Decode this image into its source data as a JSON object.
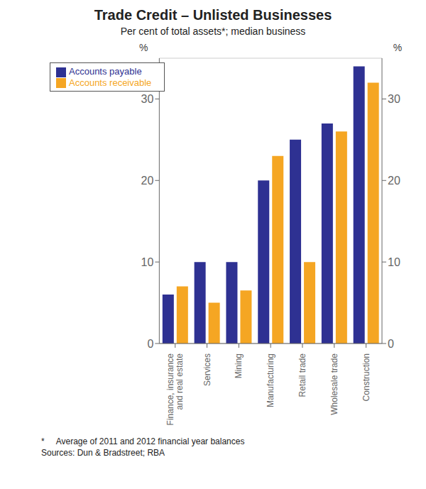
{
  "chart_data": {
    "type": "bar",
    "title": "Trade Credit – Unlisted Businesses",
    "subtitle": "Per cent of total assets*; median business",
    "categories": [
      "Finance, insurance\nand real estate",
      "Services",
      "Mining",
      "Manufacturing",
      "Retail trade",
      "Wholesale trade",
      "Construction"
    ],
    "series": [
      {
        "name": "Accounts payable",
        "color": "#2e3192",
        "values": [
          6,
          10,
          10,
          20,
          25,
          27,
          34
        ]
      },
      {
        "name": "Accounts receivable",
        "color": "#f5a623",
        "values": [
          7,
          5,
          6.5,
          23,
          10,
          26,
          32
        ]
      }
    ],
    "ylim": [
      0,
      35
    ],
    "yticks": [
      0,
      10,
      20,
      30
    ],
    "y2lim": [
      0,
      35
    ],
    "y2ticks": [
      0,
      10,
      20,
      30
    ],
    "ylabel": "%",
    "y2label": "%",
    "grid": true,
    "legend": "upper left",
    "annotations": [
      "*     Average of 2011 and 2012 financial year balances",
      "Sources: Dun & Bradstreet; RBA"
    ]
  }
}
